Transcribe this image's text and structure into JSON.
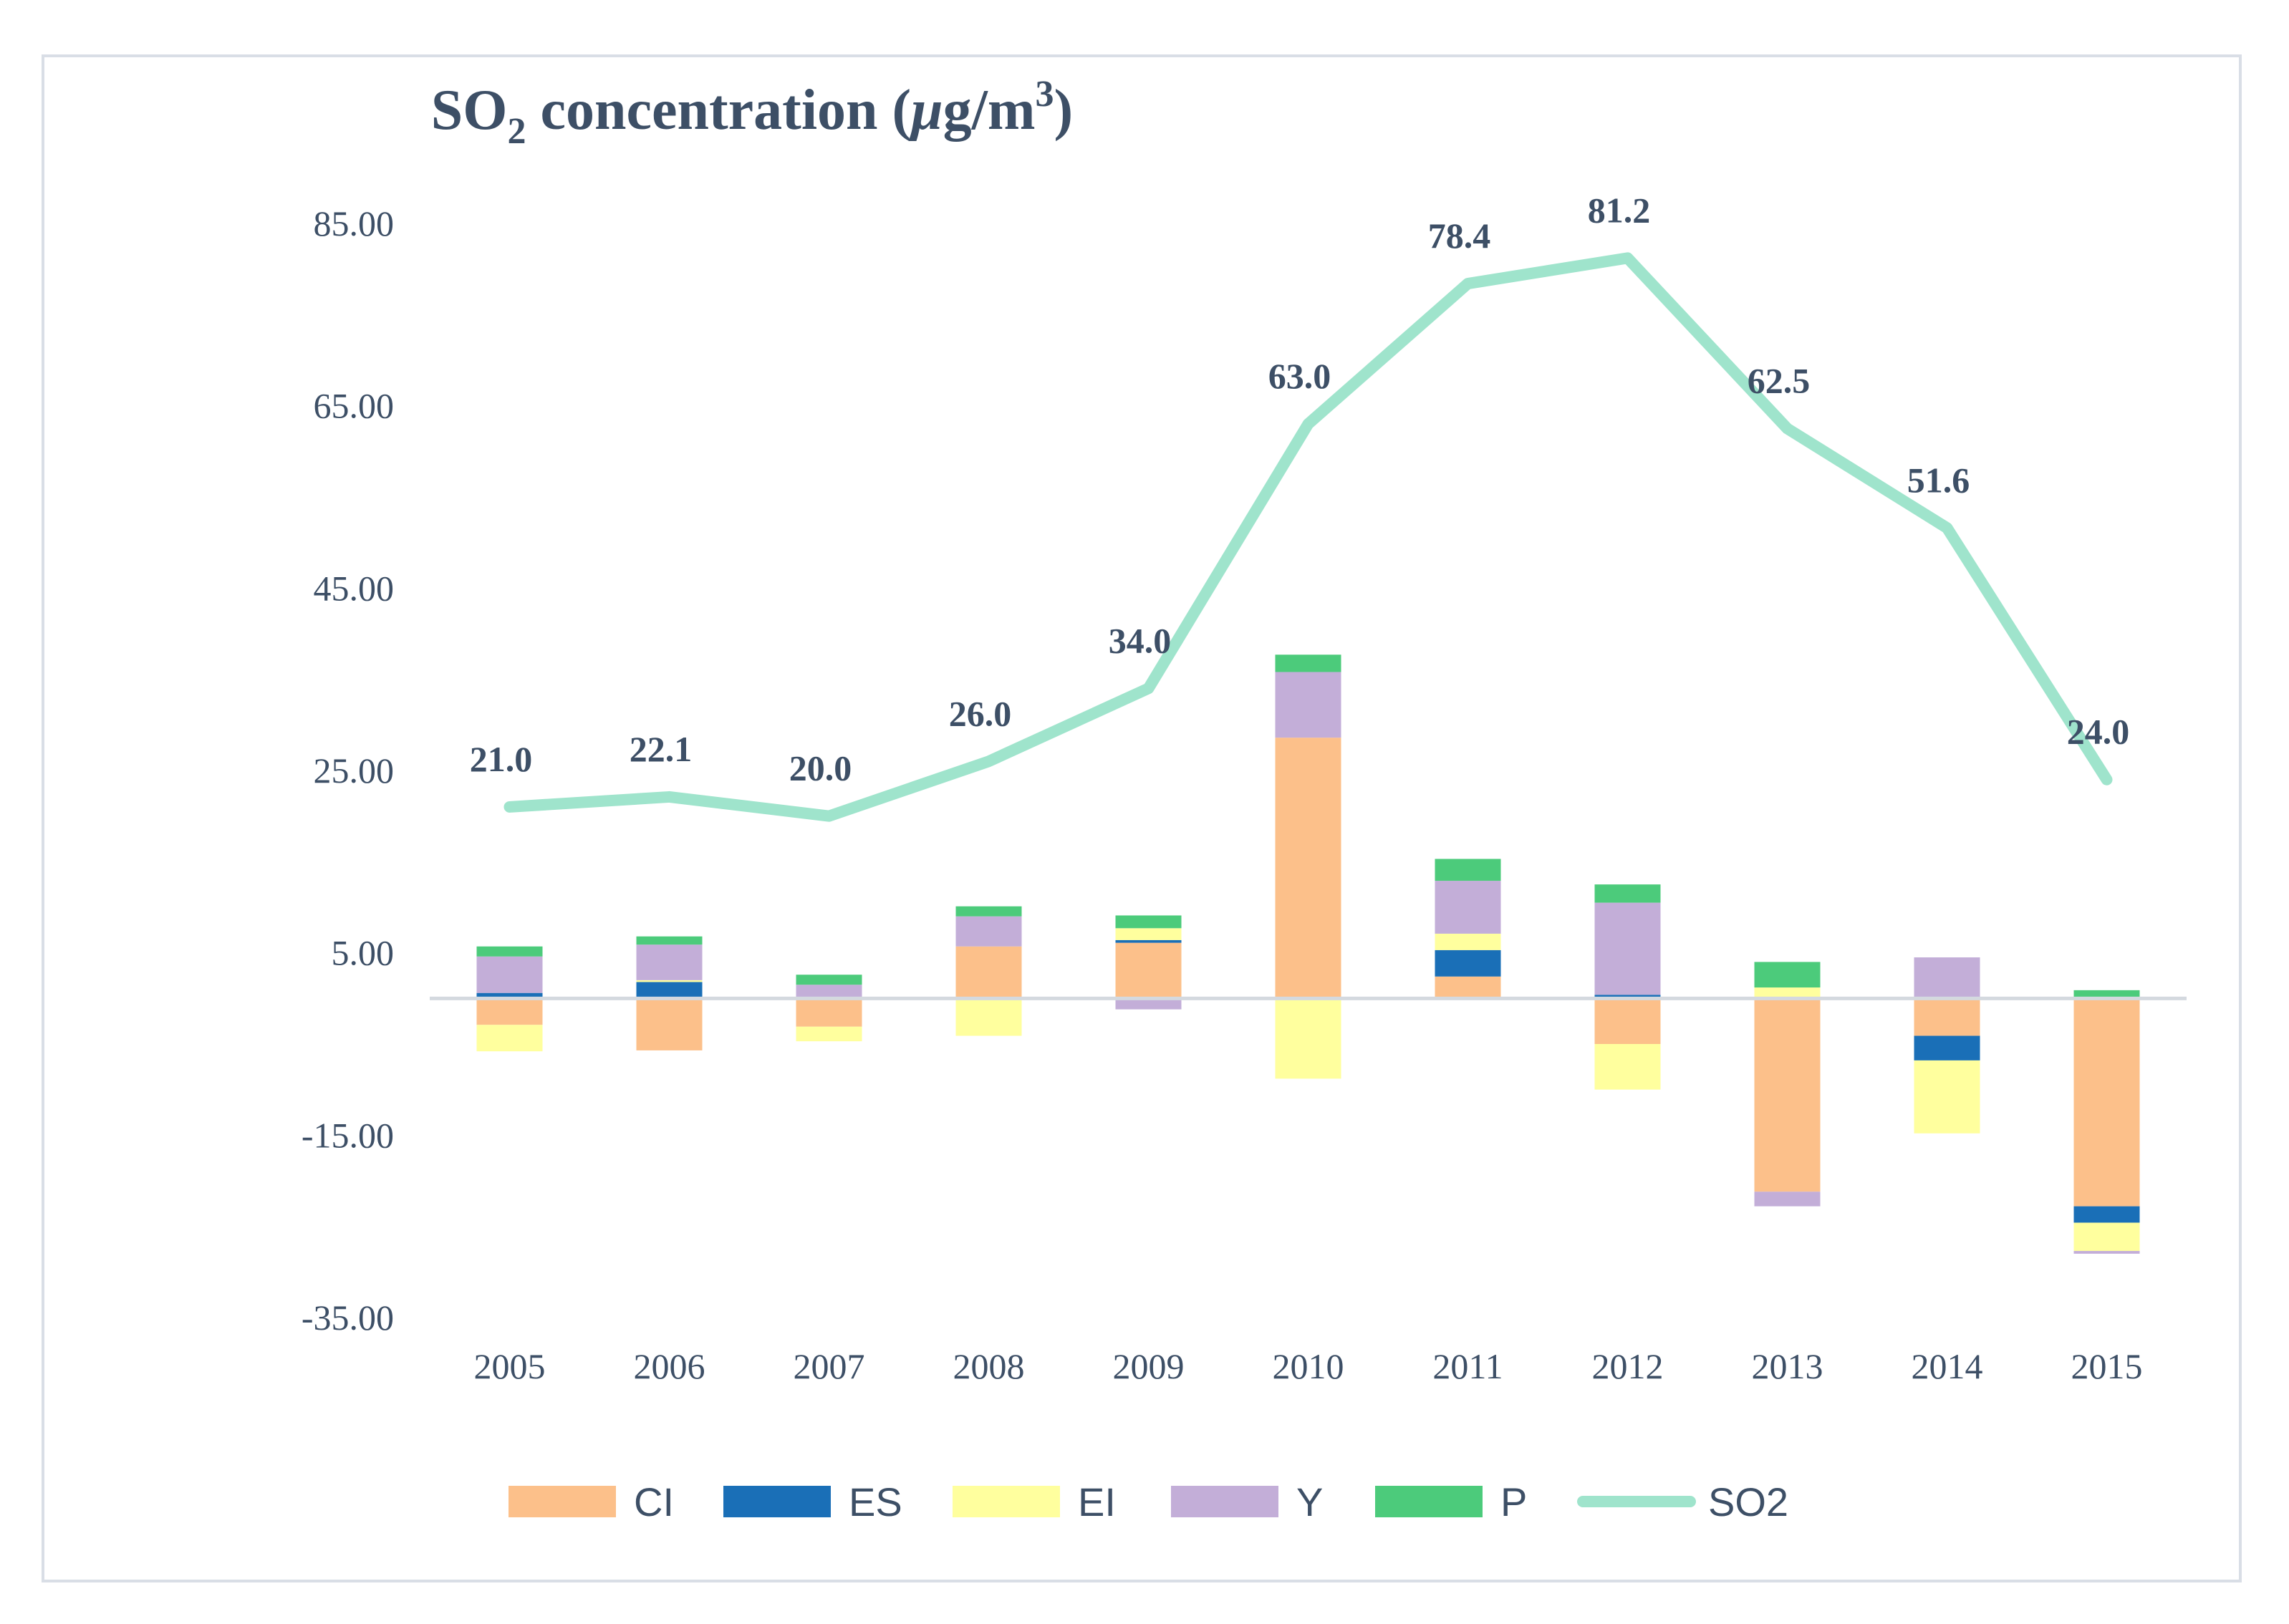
{
  "chart_data": {
    "type": "bar",
    "subtype": "stacked-bar-with-line",
    "title": {
      "prefix": "SO",
      "sub": "2",
      "rest": " concentration (",
      "mu": "μ",
      "unit": "g/m",
      "sup": "3",
      "close": ")"
    },
    "ylim": [
      -35,
      85
    ],
    "ytick_values": [
      85,
      65,
      45,
      25,
      5,
      -15,
      -35
    ],
    "ytick_labels": [
      "85.00",
      "65.00",
      "45.00",
      "25.00",
      "5.00",
      "-15.00",
      "-35.00"
    ],
    "categories": [
      "2005",
      "2006",
      "2007",
      "2008",
      "2009",
      "2010",
      "2011",
      "2012",
      "2013",
      "2014",
      "2015"
    ],
    "bar_series": [
      {
        "name": "CI",
        "color": "#FCC08A",
        "values": [
          -2.9,
          -5.7,
          -3.1,
          5.7,
          6.1,
          28.6,
          2.4,
          -5.0,
          -21.2,
          -4.1,
          -22.8
        ]
      },
      {
        "name": "ES",
        "color": "#1A6FB7",
        "values": [
          0.6,
          1.8,
          0.0,
          0.0,
          0.3,
          0.0,
          2.9,
          0.4,
          0.0,
          -2.7,
          -1.8
        ]
      },
      {
        "name": "EI",
        "color": "#FFFF9E",
        "values": [
          -2.9,
          0.2,
          -1.6,
          -4.1,
          1.3,
          -8.8,
          1.8,
          -5.0,
          1.2,
          -8.0,
          -3.1
        ]
      },
      {
        "name": "Y",
        "color": "#C3AED8",
        "values": [
          4.0,
          3.9,
          1.5,
          3.3,
          -1.2,
          7.2,
          5.8,
          10.1,
          -1.6,
          4.5,
          -0.3
        ]
      },
      {
        "name": "P",
        "color": "#4CCB7B",
        "values": [
          1.1,
          0.9,
          1.1,
          1.1,
          1.4,
          1.9,
          2.4,
          2.0,
          2.8,
          0.0,
          0.9
        ]
      }
    ],
    "line_series": {
      "name": "SO2",
      "color": "#9FE4CC",
      "values": [
        21.0,
        22.1,
        20.0,
        26.0,
        34.0,
        63.0,
        78.4,
        81.2,
        62.5,
        51.6,
        24.0
      ],
      "labels": [
        "21.0",
        "22.1",
        "20.0",
        "26.0",
        "34.0",
        "63.0",
        "78.4",
        "81.2",
        "62.5",
        "51.6",
        "24.0"
      ]
    },
    "legend": [
      "CI",
      "ES",
      "EI",
      "Y",
      "P",
      "SO2"
    ],
    "legend_position": "bottom",
    "grid": false
  }
}
